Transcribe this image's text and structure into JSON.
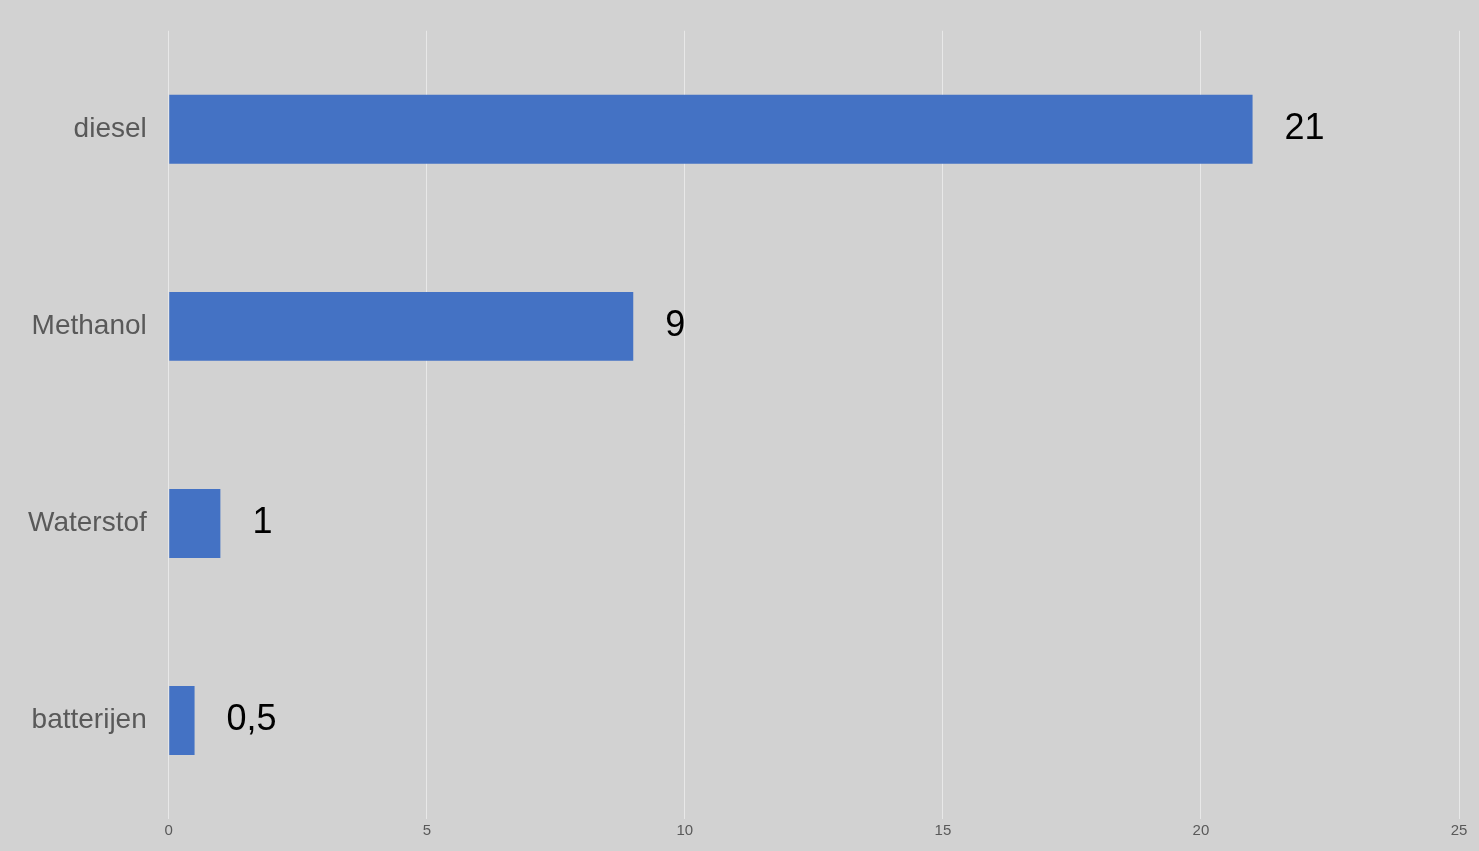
{
  "chart_data": {
    "type": "bar",
    "orientation": "horizontal",
    "categories": [
      "diesel",
      "Methanol",
      "Waterstof",
      "batterijen"
    ],
    "values": [
      21,
      9,
      1,
      0.5
    ],
    "value_labels": [
      "21",
      "9",
      "1",
      "0,5"
    ],
    "color": "#4472c4",
    "xlim": [
      0,
      25
    ],
    "xticks": [
      0,
      5,
      10,
      15,
      20,
      25
    ],
    "grid": true,
    "data_labels": true
  }
}
